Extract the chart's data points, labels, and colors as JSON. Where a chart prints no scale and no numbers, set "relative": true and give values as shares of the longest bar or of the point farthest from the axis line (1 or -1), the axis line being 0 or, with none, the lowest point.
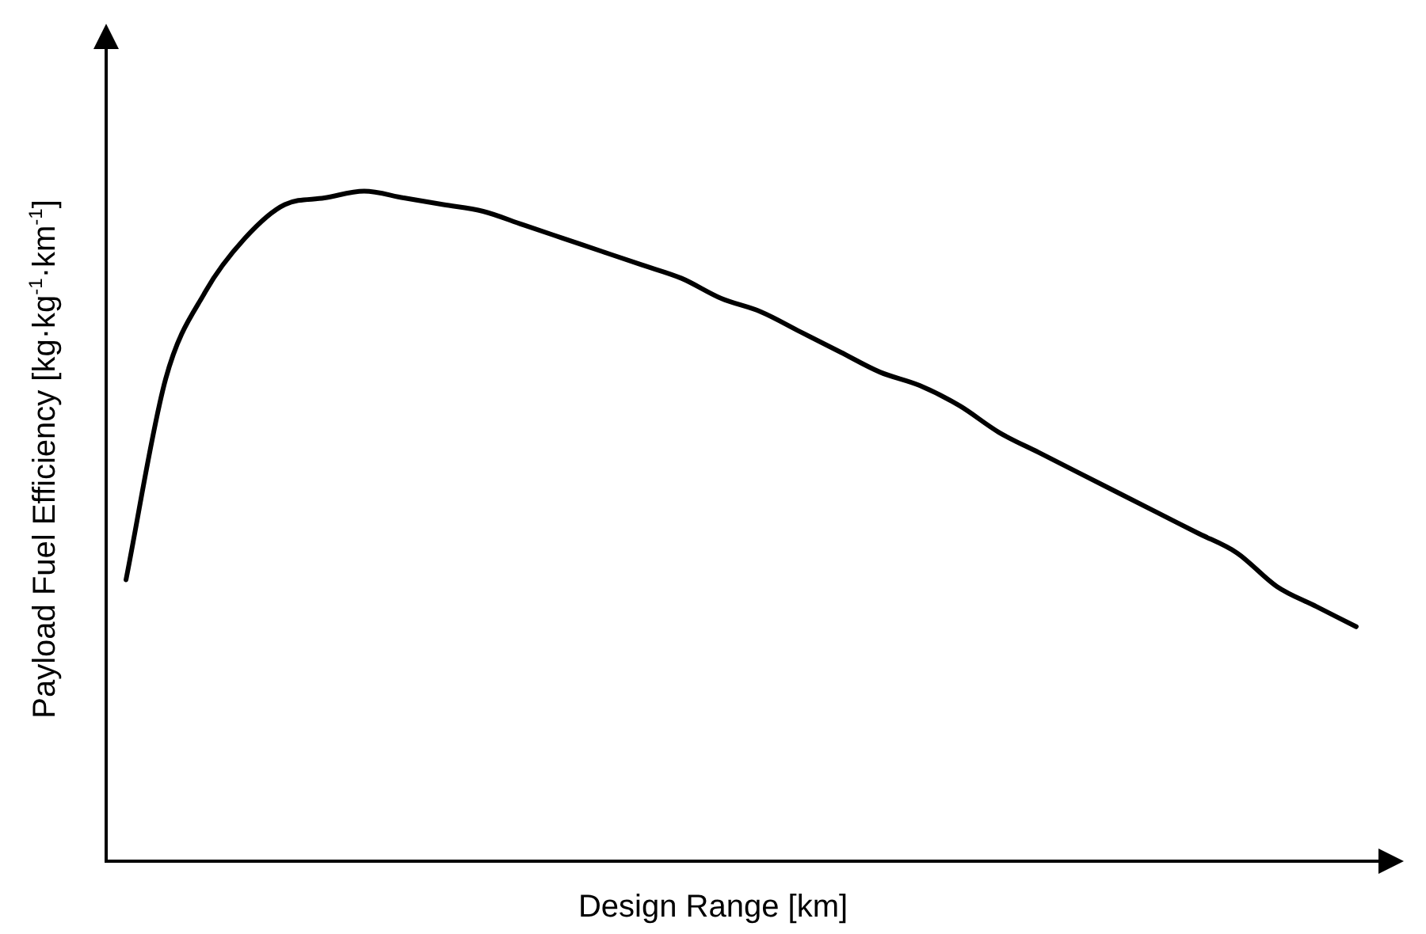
{
  "chart_data": {
    "type": "line",
    "xlabel": "Design Range [km]",
    "ylabel": "Payload Fuel Efficiency [kg·kg$^{-1}$·km$^{-1}$]",
    "relative": true,
    "tick_labels": false,
    "color": "#000000",
    "categories": [
      null,
      null,
      null,
      null,
      null,
      null,
      null,
      null,
      null,
      null,
      null,
      null,
      null,
      null,
      null,
      null,
      null,
      null,
      null,
      null,
      null,
      null,
      null,
      null,
      null,
      null,
      null,
      null,
      null,
      null,
      null,
      null
    ],
    "values": [
      0.42,
      0.72,
      0.85,
      0.93,
      0.98,
      0.99,
      1.0,
      0.99,
      0.98,
      0.97,
      0.95,
      0.93,
      0.91,
      0.89,
      0.87,
      0.84,
      0.82,
      0.79,
      0.76,
      0.73,
      0.71,
      0.68,
      0.64,
      0.61,
      0.58,
      0.55,
      0.52,
      0.49,
      0.46,
      0.41,
      0.38,
      0.35
    ]
  }
}
